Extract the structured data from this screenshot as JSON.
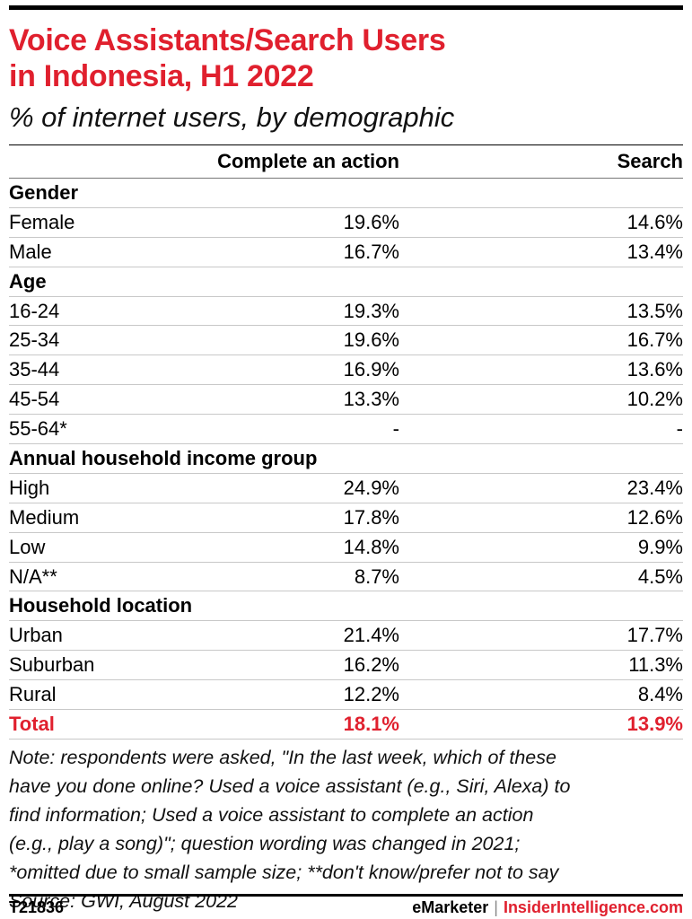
{
  "title_line1": "Voice Assistants/Search Users",
  "title_line2": "in Indonesia, H1 2022",
  "subtitle": "% of internet users, by demographic",
  "chart_data": {
    "type": "table",
    "columns": [
      "",
      "Complete an action",
      "Search"
    ],
    "rows": [
      {
        "group": true,
        "label": "Gender"
      },
      {
        "label": "Female",
        "complete": "19.6%",
        "search": "14.6%"
      },
      {
        "label": "Male",
        "complete": "16.7%",
        "search": "13.4%"
      },
      {
        "group": true,
        "label": "Age"
      },
      {
        "label": "16-24",
        "complete": "19.3%",
        "search": "13.5%"
      },
      {
        "label": "25-34",
        "complete": "19.6%",
        "search": "16.7%"
      },
      {
        "label": "35-44",
        "complete": "16.9%",
        "search": "13.6%"
      },
      {
        "label": "45-54",
        "complete": "13.3%",
        "search": "10.2%"
      },
      {
        "label": "55-64*",
        "complete": "-",
        "search": "-"
      },
      {
        "group": true,
        "label": "Annual household income group"
      },
      {
        "label": "High",
        "complete": "24.9%",
        "search": "23.4%"
      },
      {
        "label": "Medium",
        "complete": "17.8%",
        "search": "12.6%"
      },
      {
        "label": "Low",
        "complete": "14.8%",
        "search": "9.9%"
      },
      {
        "label": "N/A**",
        "complete": "8.7%",
        "search": "4.5%"
      },
      {
        "group": true,
        "label": "Household location"
      },
      {
        "label": "Urban",
        "complete": "21.4%",
        "search": "17.7%"
      },
      {
        "label": "Suburban",
        "complete": "16.2%",
        "search": "11.3%"
      },
      {
        "label": "Rural",
        "complete": "12.2%",
        "search": "8.4%"
      },
      {
        "total": true,
        "label": "Total",
        "complete": "18.1%",
        "search": "13.9%"
      }
    ]
  },
  "note_lines": [
    "Note: respondents were asked, \"In the last week, which of these",
    "have you done online? Used a voice assistant (e.g., Siri, Alexa) to",
    "find information; Used a voice assistant to complete an action",
    "(e.g., play a song)\"; question wording was changed in 2021;",
    "*omitted due to small sample size; **don't know/prefer not to say",
    "Source: GWI, August 2022"
  ],
  "footer": {
    "id": "T21836",
    "brand1": "eMarketer",
    "separator": "|",
    "brand2": "InsiderIntelligence.com"
  },
  "colors": {
    "accent": "#e0202e",
    "text": "#000000"
  }
}
